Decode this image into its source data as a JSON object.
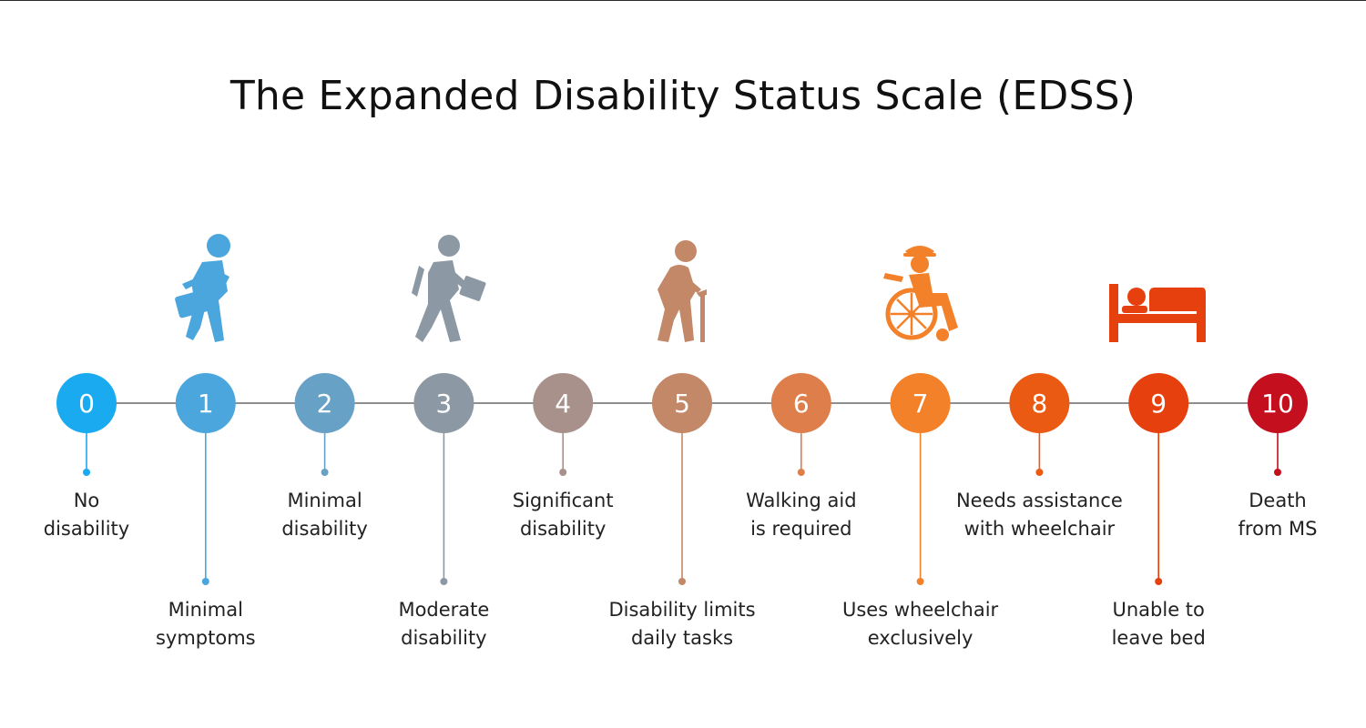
{
  "title": "The Expanded Disability Status Scale (EDSS)",
  "levels": [
    {
      "value": "0",
      "label_lines": [
        "No",
        "disability"
      ],
      "color": "#1aaaf0"
    },
    {
      "value": "1",
      "label_lines": [
        "Minimal",
        "symptoms"
      ],
      "color": "#4aa6dc"
    },
    {
      "value": "2",
      "label_lines": [
        "Minimal",
        "disability"
      ],
      "color": "#68a1c6"
    },
    {
      "value": "3",
      "label_lines": [
        "Moderate",
        "disability"
      ],
      "color": "#8c98a3"
    },
    {
      "value": "4",
      "label_lines": [
        "Significant",
        "disability"
      ],
      "color": "#a8918a"
    },
    {
      "value": "5",
      "label_lines": [
        "Disability limits",
        "daily tasks"
      ],
      "color": "#c28868"
    },
    {
      "value": "6",
      "label_lines": [
        "Walking aid",
        "is required"
      ],
      "color": "#de7f4b"
    },
    {
      "value": "7",
      "label_lines": [
        "Uses wheelchair",
        "exclusively"
      ],
      "color": "#f2812a"
    },
    {
      "value": "8",
      "label_lines": [
        "Needs assistance",
        "with wheelchair"
      ],
      "color": "#eb5a13"
    },
    {
      "value": "9",
      "label_lines": [
        "Unable to",
        "leave bed"
      ],
      "color": "#e6400f"
    },
    {
      "value": "10",
      "label_lines": [
        "Death",
        "from MS"
      ],
      "color": "#c4101e"
    }
  ],
  "icons": [
    {
      "name": "walking-with-briefcase-icon",
      "level": "1",
      "color": "#4aa6dc"
    },
    {
      "name": "walking-with-bag-icon",
      "level": "3",
      "color": "#8c98a3"
    },
    {
      "name": "walking-with-cane-icon",
      "level": "5",
      "color": "#c28868"
    },
    {
      "name": "wheelchair-user-icon",
      "level": "7",
      "color": "#f2812a"
    },
    {
      "name": "bedridden-icon",
      "level": "9",
      "color": "#e6400f"
    }
  ],
  "line_color": "#8f8f8f"
}
